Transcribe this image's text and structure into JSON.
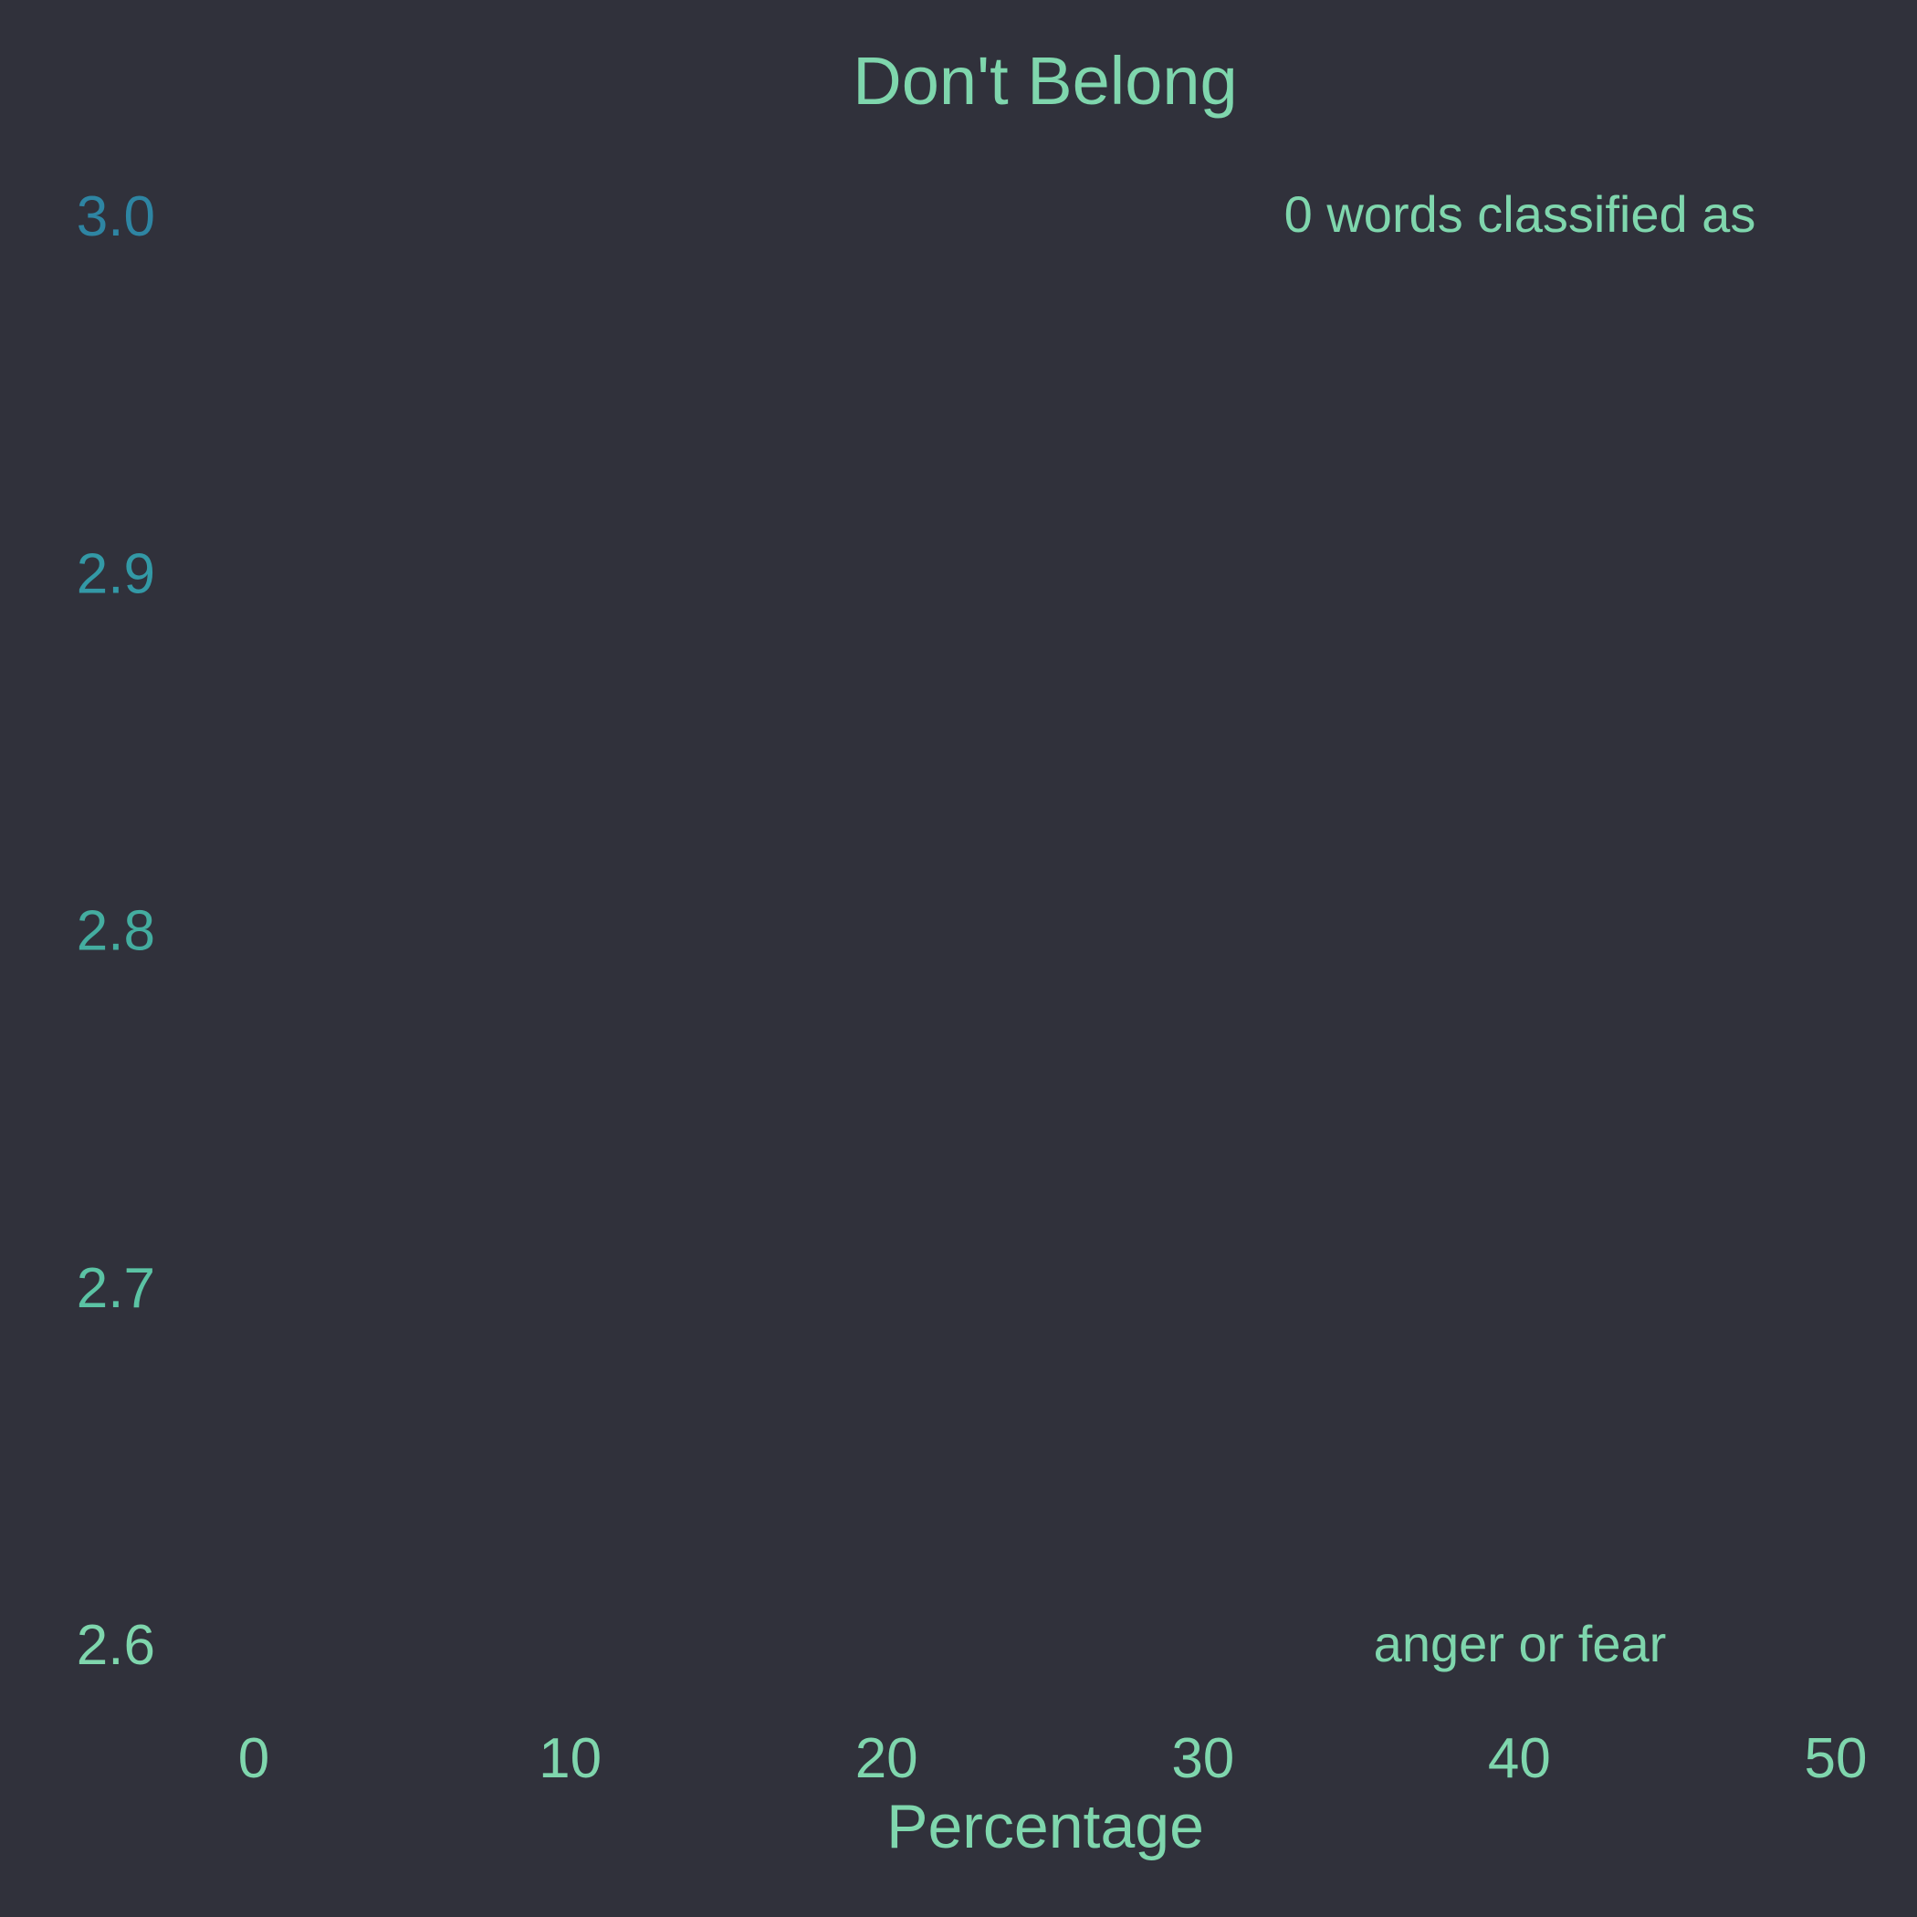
{
  "chart_data": {
    "type": "bar",
    "title": "Don't Belong",
    "xlabel": "Percentage",
    "ylabel": "",
    "xlim": [
      0,
      50
    ],
    "ylim": [
      2.6,
      3.0
    ],
    "x_ticks": [
      "0",
      "10",
      "20",
      "30",
      "40",
      "50"
    ],
    "y_ticks": [
      "3.0",
      "2.9",
      "2.8",
      "2.7",
      "2.6"
    ],
    "categories": [],
    "values": [],
    "grid": false,
    "annotation": {
      "line1": "0 words classified as",
      "line2": "anger or fear"
    }
  },
  "colors": {
    "background": "#30313b",
    "text": "#7fd6ad",
    "y_tick_gradient": [
      "#2e85a3",
      "#3399a6",
      "#44ada0",
      "#5bc3a4",
      "#7fd6ad"
    ]
  }
}
